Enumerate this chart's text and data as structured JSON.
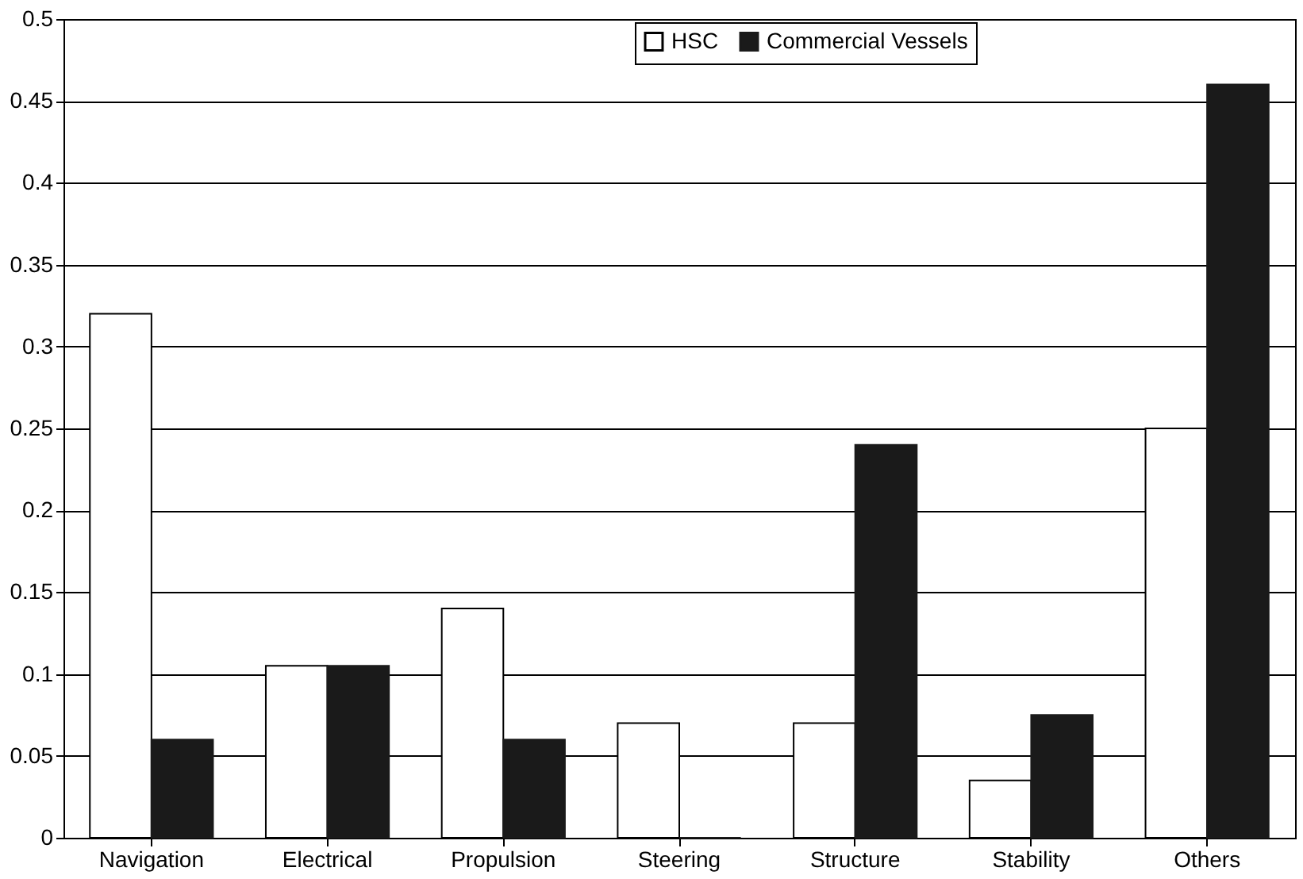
{
  "chart_data": {
    "type": "bar",
    "categories": [
      "Navigation",
      "Electrical",
      "Propulsion",
      "Steering",
      "Structure",
      "Stability",
      "Others"
    ],
    "series": [
      {
        "name": "HSC",
        "color": "#ffffff",
        "values": [
          0.32,
          0.105,
          0.14,
          0.07,
          0.07,
          0.035,
          0.25
        ]
      },
      {
        "name": "Commercial Vessels",
        "color": "#1a1a1a",
        "values": [
          0.06,
          0.105,
          0.06,
          0,
          0.24,
          0.075,
          0.46
        ]
      }
    ],
    "ylim": [
      0,
      0.5
    ],
    "yticks": [
      0,
      0.05,
      0.1,
      0.15,
      0.2,
      0.25,
      0.3,
      0.35,
      0.4,
      0.45,
      0.5
    ],
    "grid": "y",
    "legend": "top right"
  }
}
